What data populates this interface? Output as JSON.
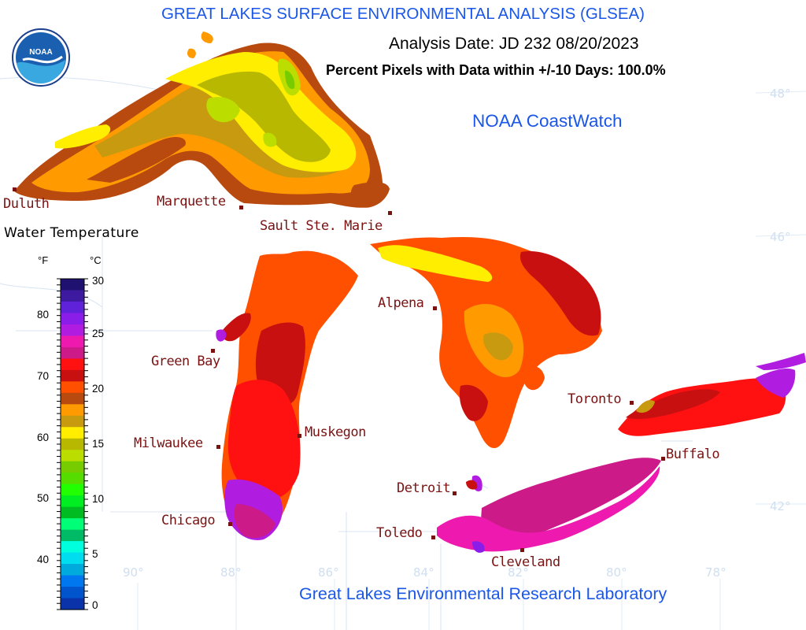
{
  "header": {
    "title": "GREAT LAKES SURFACE ENVIRONMENTAL ANALYSIS (GLSEA)",
    "analysis_date": "Analysis Date:  JD 232 08/20/2023",
    "percent_pixels": "Percent Pixels with Data within +/-10 Days: 100.0%",
    "source": "NOAA CoastWatch",
    "lab": "Great Lakes Environmental Research Laboratory",
    "logo_text": "NOAA"
  },
  "legend": {
    "title": "Water Temperature",
    "unit_f": "°F",
    "unit_c": "°C",
    "f_ticks": [
      "80",
      "70",
      "60",
      "50",
      "40"
    ],
    "c_ticks": [
      "30",
      "25",
      "20",
      "15",
      "10",
      "5",
      "0"
    ],
    "colors_top_to_bottom": [
      "#1e1170",
      "#3d1aa0",
      "#6022d8",
      "#8a1ee8",
      "#b01ce0",
      "#ee1ab0",
      "#cc1a88",
      "#ff1111",
      "#c81010",
      "#ff5000",
      "#b84a10",
      "#ff9a00",
      "#c89a10",
      "#ffee00",
      "#b8b800",
      "#bbdd00",
      "#77cc00",
      "#55dd00",
      "#22ff00",
      "#00ee22",
      "#00bb22",
      "#00ff77",
      "#00bb66",
      "#00ffdd",
      "#00ddee",
      "#00aadd",
      "#0077ee",
      "#0055cc",
      "#0a33aa"
    ]
  },
  "cities": {
    "duluth": "Duluth",
    "marquette": "Marquette",
    "sault": "Sault Ste. Marie",
    "green_bay": "Green Bay",
    "alpena": "Alpena",
    "milwaukee": "Milwaukee",
    "muskegon": "Muskegon",
    "toronto": "Toronto",
    "buffalo": "Buffalo",
    "detroit": "Detroit",
    "chicago": "Chicago",
    "toledo": "Toledo",
    "cleveland": "Cleveland"
  },
  "graticule": {
    "lat_48": "48°",
    "lat_46": "46°",
    "lat_42": "42°",
    "lon_90": "90°",
    "lon_88": "88°",
    "lon_86": "86°",
    "lon_84": "84°",
    "lon_82": "82°",
    "lon_80": "80°",
    "lon_78": "78°"
  }
}
